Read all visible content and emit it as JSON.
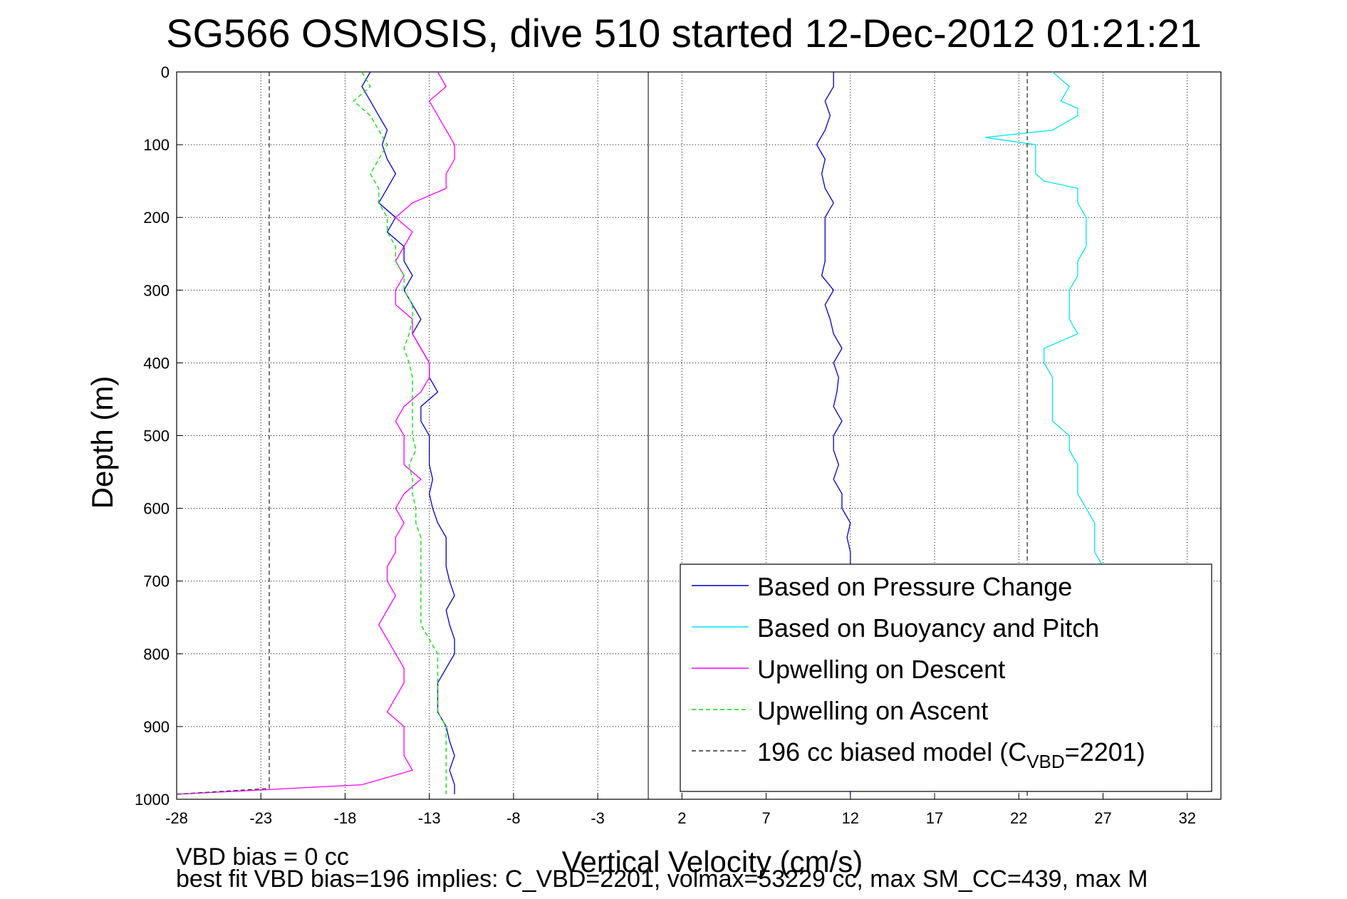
{
  "chart_data": {
    "type": "line",
    "title": "SG566 OSMOSIS, dive 510 started 12-Dec-2012 01:21:21",
    "xlabel": "Vertical Velocity (cm/s)",
    "ylabel": "Depth (m)",
    "xlim": [
      -28,
      34
    ],
    "ylim": [
      1000,
      0
    ],
    "y_reversed": true,
    "xticks": [
      "-28",
      "-23",
      "-18",
      "-13",
      "-8",
      "-3",
      "2",
      "7",
      "12",
      "17",
      "22",
      "27",
      "32"
    ],
    "yticks": [
      "0",
      "100",
      "200",
      "300",
      "400",
      "500",
      "600",
      "700",
      "800",
      "900",
      "1000"
    ],
    "grid": true,
    "legend_position": "bottom-right",
    "zero_line_x": 0,
    "series": [
      {
        "name": "Based on Pressure Change",
        "color": "#0000cc",
        "style": "solid",
        "segments": [
          {
            "depth": [
              0,
              20,
              40,
              60,
              80,
              100,
              120,
              140,
              160,
              180,
              200,
              220,
              240,
              260,
              280,
              300,
              320,
              340,
              360,
              380,
              400,
              420,
              440,
              460,
              480,
              500,
              520,
              540,
              560,
              580,
              600,
              620,
              640,
              660,
              680,
              700,
              720,
              740,
              760,
              780,
              800,
              820,
              840,
              860,
              880,
              900,
              920,
              940,
              960,
              980,
              993
            ],
            "velocity": [
              -16.5,
              -17,
              -16.5,
              -16,
              -15.5,
              -15.8,
              -15.5,
              -15,
              -15.5,
              -16,
              -15,
              -15.5,
              -14.5,
              -14.5,
              -14,
              -14.5,
              -14,
              -13.5,
              -14,
              -13.5,
              -13,
              -13,
              -12.5,
              -13.5,
              -13.5,
              -13,
              -13,
              -13,
              -12.8,
              -13,
              -12.8,
              -12.5,
              -12,
              -12,
              -12,
              -11.8,
              -11.5,
              -12,
              -11.8,
              -11.5,
              -11.5,
              -12,
              -12.5,
              -12.5,
              -12.5,
              -12,
              -11.8,
              -11.5,
              -11.8,
              -11.5,
              -11.5
            ]
          },
          {
            "depth": [
              0,
              20,
              40,
              60,
              80,
              100,
              120,
              140,
              160,
              180,
              200,
              220,
              240,
              260,
              280,
              300,
              320,
              340,
              360,
              380,
              400,
              420,
              440,
              460,
              480,
              500,
              520,
              540,
              560,
              580,
              600,
              620,
              640,
              660,
              680,
              700,
              720,
              740,
              760,
              780,
              800,
              820,
              840,
              860,
              880,
              900,
              920,
              940,
              960,
              980,
              993
            ],
            "velocity": [
              11,
              11,
              10.5,
              10.8,
              10.5,
              10,
              10.5,
              10.3,
              10.5,
              11,
              10.5,
              10.5,
              10.5,
              10.5,
              10.3,
              11,
              10.5,
              10.8,
              11,
              11.5,
              11,
              11.3,
              11.2,
              11,
              11.5,
              11,
              11,
              11.3,
              11,
              11.5,
              11.5,
              12,
              11.8,
              12,
              12,
              12,
              12,
              12,
              12,
              12,
              12,
              12,
              12,
              12,
              12,
              12,
              12,
              12,
              12,
              12,
              12
            ]
          }
        ]
      },
      {
        "name": "Based on Buoyancy and Pitch",
        "color": "#00e5ee",
        "style": "solid",
        "depth": [
          0,
          10,
          20,
          40,
          50,
          60,
          80,
          90,
          100,
          120,
          140,
          150,
          160,
          180,
          200,
          220,
          240,
          260,
          280,
          300,
          320,
          340,
          360,
          380,
          400,
          420,
          440,
          460,
          480,
          500,
          520,
          540,
          560,
          580,
          600,
          620,
          640,
          660,
          680
        ],
        "velocity": [
          24,
          24.5,
          25,
          24.5,
          25.5,
          25.5,
          24,
          20,
          23,
          23,
          23,
          23.5,
          25.5,
          25.5,
          26,
          26,
          26,
          25.5,
          25.5,
          25,
          25,
          25,
          25.5,
          23.5,
          23.5,
          24,
          24,
          24,
          24,
          25,
          25,
          25.5,
          25.5,
          25.5,
          26,
          26.5,
          26.5,
          26.5,
          27
        ]
      },
      {
        "name": "Upwelling on Descent",
        "color": "#ff00ff",
        "style": "solid",
        "depth": [
          0,
          20,
          40,
          60,
          80,
          100,
          120,
          140,
          160,
          180,
          200,
          220,
          240,
          260,
          280,
          300,
          320,
          340,
          360,
          380,
          400,
          420,
          440,
          460,
          480,
          500,
          520,
          540,
          560,
          580,
          600,
          620,
          640,
          660,
          680,
          700,
          720,
          740,
          760,
          780,
          800,
          820,
          840,
          860,
          880,
          900,
          920,
          940,
          960,
          980,
          993
        ],
        "velocity": [
          -12.5,
          -12,
          -13,
          -12.5,
          -12,
          -11.5,
          -11.5,
          -12,
          -12,
          -14,
          -15,
          -14,
          -14.5,
          -15,
          -14.5,
          -15,
          -15,
          -14,
          -14,
          -13.5,
          -13,
          -13,
          -13.5,
          -14.5,
          -15,
          -14.5,
          -14.5,
          -14.5,
          -13.5,
          -14.5,
          -15,
          -14.5,
          -15,
          -15,
          -15.5,
          -15.5,
          -15,
          -15.5,
          -16,
          -15.5,
          -15,
          -14.5,
          -14.5,
          -15,
          -15.5,
          -14.5,
          -14.5,
          -14.5,
          -14,
          -17,
          -28
        ]
      },
      {
        "name": "Upwelling on Ascent",
        "color": "#00dd00",
        "style": "dashed",
        "depth": [
          0,
          20,
          40,
          60,
          80,
          100,
          120,
          140,
          160,
          180,
          200,
          220,
          240,
          260,
          280,
          300,
          320,
          340,
          360,
          380,
          400,
          420,
          440,
          460,
          480,
          500,
          520,
          540,
          560,
          580,
          600,
          620,
          640,
          660,
          680,
          700,
          720,
          740,
          760,
          780,
          800,
          820,
          840,
          860,
          880,
          900,
          920,
          940,
          960,
          980,
          993
        ],
        "velocity": [
          -17,
          -16.5,
          -17.5,
          -16.5,
          -16,
          -15.5,
          -16,
          -16.5,
          -16,
          -16,
          -15.5,
          -15.5,
          -15,
          -15,
          -14.5,
          -14.5,
          -14,
          -14,
          -14.2,
          -14.5,
          -14.2,
          -14,
          -14,
          -14,
          -14,
          -14,
          -13.8,
          -14.2,
          -14,
          -14,
          -13.8,
          -13.8,
          -13.5,
          -13.5,
          -13.5,
          -13.5,
          -13.5,
          -13.5,
          -13.5,
          -13,
          -12.5,
          -12.5,
          -12.5,
          -12.5,
          -12.5,
          -12,
          -12,
          -12,
          -12,
          -12,
          -12
        ]
      },
      {
        "name": "196 cc biased model (C",
        "name_subscript": "VBD",
        "name_suffix": "=2201)",
        "color": "#333333",
        "style": "dashed",
        "segments": [
          {
            "depth": [
              0,
              985,
              993
            ],
            "velocity": [
              -22.5,
              -22.5,
              -28
            ]
          },
          {
            "depth": [
              0,
              1000
            ],
            "velocity": [
              22.5,
              22.5
            ]
          }
        ]
      }
    ],
    "annotations": [
      "VBD bias = 0 cc",
      "best fit VBD bias=196 implies: C_VBD=2201, volmax=53229 cc, max SM_CC=439, max M"
    ]
  }
}
